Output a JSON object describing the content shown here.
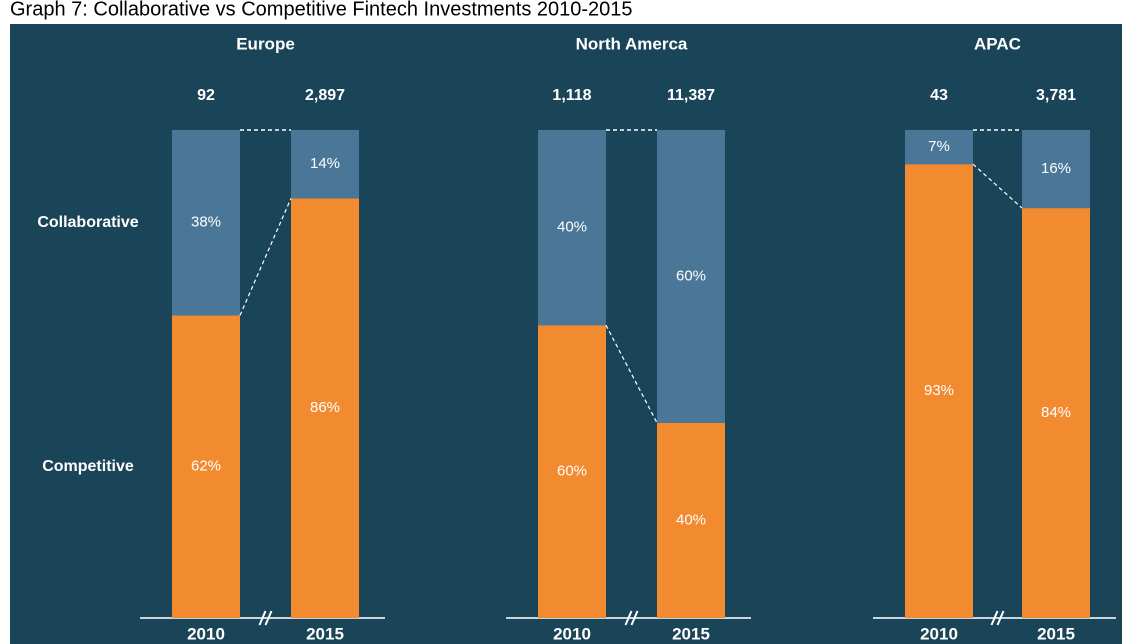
{
  "chart_data": {
    "type": "bar",
    "stacked": true,
    "title": "Graph 7: Collaborative vs Competitive Fintech Investments 2010-2015",
    "panels": [
      "Europe",
      "North Amerca",
      "APAC"
    ],
    "categories": [
      "2010",
      "2015"
    ],
    "totals": [
      [
        92,
        2897
      ],
      [
        1118,
        11387
      ],
      [
        43,
        3781
      ]
    ],
    "totals_labels": [
      [
        "92",
        "2,897"
      ],
      [
        "1,118",
        "11,387"
      ],
      [
        "43",
        "3,781"
      ]
    ],
    "series": [
      {
        "name": "Competitive",
        "color": "#f28a30",
        "values": [
          [
            62,
            86
          ],
          [
            60,
            40
          ],
          [
            93,
            84
          ]
        ],
        "value_labels": [
          [
            "62%",
            "86%"
          ],
          [
            "60%",
            "40%"
          ],
          [
            "93%",
            "84%"
          ]
        ]
      },
      {
        "name": "Collaborative",
        "color": "#4a7797",
        "values": [
          [
            38,
            14
          ],
          [
            40,
            60
          ],
          [
            7,
            16
          ]
        ],
        "value_labels": [
          [
            "38%",
            "14%"
          ],
          [
            "40%",
            "60%"
          ],
          [
            "7%",
            "16%"
          ]
        ]
      }
    ],
    "ylim": [
      0,
      100
    ]
  }
}
